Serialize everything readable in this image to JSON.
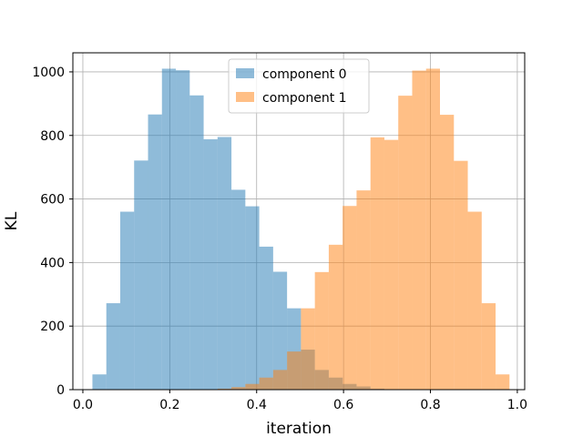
{
  "chart_data": {
    "type": "histogram",
    "title": "",
    "xlabel": "iteration",
    "ylabel": "KL",
    "xlim": [
      -0.0,
      1.0
    ],
    "ylim": [
      0,
      1060
    ],
    "x_ticks": [
      0.0,
      0.2,
      0.4,
      0.6,
      0.8,
      1.0
    ],
    "x_tick_labels": [
      "0.0",
      "0.2",
      "0.4",
      "0.6",
      "0.8",
      "1.0"
    ],
    "y_ticks": [
      0,
      200,
      400,
      600,
      800,
      1000
    ],
    "y_tick_labels": [
      "0",
      "200",
      "400",
      "600",
      "800",
      "1000"
    ],
    "grid": true,
    "legend_position": "top-center",
    "series": [
      {
        "name": "component 0",
        "color": "#1f77b4",
        "opacity": 0.5,
        "bin_edges": [
          0.022,
          0.054,
          0.086,
          0.118,
          0.15,
          0.182,
          0.214,
          0.246,
          0.278,
          0.31,
          0.342,
          0.374,
          0.406,
          0.438,
          0.47,
          0.502,
          0.534,
          0.566,
          0.598,
          0.63,
          0.662,
          0.694
        ],
        "counts": [
          48,
          272,
          560,
          721,
          866,
          1010,
          1005,
          926,
          788,
          795,
          629,
          577,
          450,
          371,
          256,
          126,
          62,
          38,
          18,
          10,
          3
        ]
      },
      {
        "name": "component 1",
        "color": "#ff7f0e",
        "opacity": 0.5,
        "bin_edges": [
          0.31,
          0.342,
          0.374,
          0.406,
          0.438,
          0.47,
          0.502,
          0.534,
          0.566,
          0.598,
          0.63,
          0.662,
          0.694,
          0.726,
          0.758,
          0.79,
          0.822,
          0.854,
          0.886,
          0.918,
          0.95,
          0.982
        ],
        "counts": [
          3,
          8,
          18,
          38,
          62,
          120,
          256,
          370,
          456,
          578,
          627,
          794,
          786,
          925,
          1004,
          1010,
          865,
          720,
          560,
          272,
          48
        ]
      }
    ]
  }
}
